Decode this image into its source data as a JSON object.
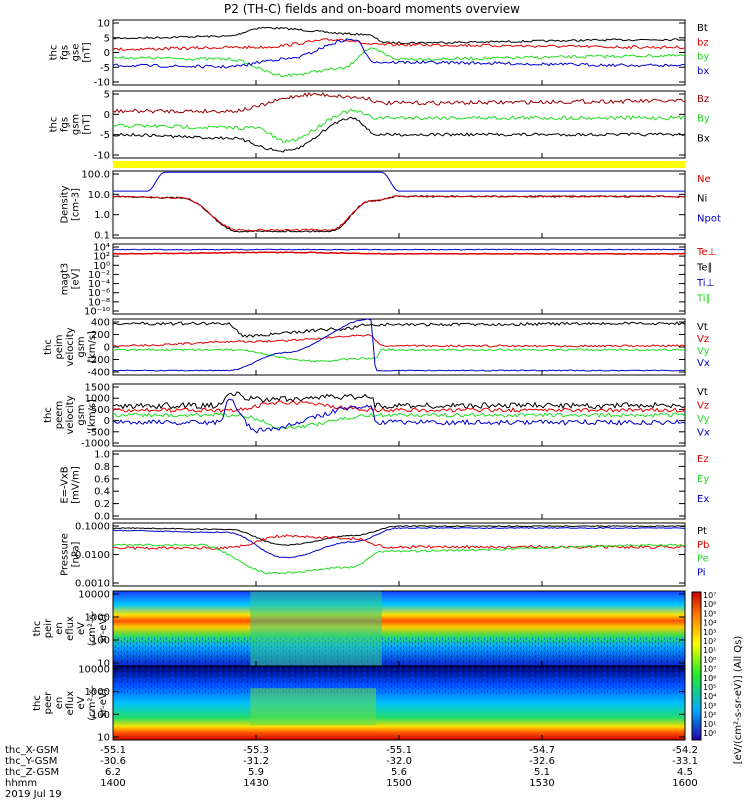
{
  "title": "P2 (TH-C) fields and on-board moments overview",
  "colors": {
    "black": "#000000",
    "red": "#e00000",
    "green": "#22dd22",
    "blue": "#0000cc",
    "darkred": "#990000",
    "yellow": "#ffff00"
  },
  "panels": [
    {
      "id": "fgs-gse",
      "ylabel": [
        "thc",
        "fgs",
        "gse",
        "[nT]"
      ],
      "ticks": [
        "10",
        "5",
        "0",
        "-5",
        "-10"
      ],
      "legend": [
        {
          "text": "Bt",
          "color": "black"
        },
        {
          "text": "bz",
          "color": "red"
        },
        {
          "text": "by",
          "color": "green"
        },
        {
          "text": "bx",
          "color": "blue"
        }
      ]
    },
    {
      "id": "fgs-gsm",
      "ylabel": [
        "thc",
        "fgs",
        "gsm",
        "[nT]"
      ],
      "ticks": [
        "5",
        "0",
        "-5",
        "-10"
      ],
      "legend": [
        {
          "text": "Bz",
          "color": "darkred"
        },
        {
          "text": "By",
          "color": "green"
        },
        {
          "text": "Bx",
          "color": "black"
        }
      ]
    },
    {
      "id": "density",
      "ylabel": [
        "Density",
        "[cm-3]"
      ],
      "ticks": [
        "100.0",
        "10.0",
        "1.0",
        "0.1"
      ],
      "legend": [
        {
          "text": "Ne",
          "color": "red"
        },
        {
          "text": "Ni",
          "color": "black"
        },
        {
          "text": "Npot",
          "color": "blue"
        }
      ]
    },
    {
      "id": "temp",
      "ylabel": [
        "magt3",
        "[eV]"
      ],
      "ticks": [
        "10⁴",
        "10²",
        "10⁰",
        "10⁻²",
        "10⁻⁴",
        "10⁻⁶",
        "10⁻⁸",
        "10⁻¹⁰"
      ],
      "legend": [
        {
          "text": "Te⊥",
          "color": "red"
        },
        {
          "text": "Te∥",
          "color": "black"
        },
        {
          "text": "Ti⊥",
          "color": "blue"
        },
        {
          "text": "Ti∥",
          "color": "green"
        }
      ]
    },
    {
      "id": "peim-vel",
      "ylabel": [
        "thc",
        "peim",
        "velocity",
        "gsm",
        "[km/s]"
      ],
      "ticks": [
        "400",
        "200",
        "0",
        "-200",
        "-400"
      ],
      "legend": [
        {
          "text": "Vt",
          "color": "black"
        },
        {
          "text": "Vz",
          "color": "red"
        },
        {
          "text": "Vy",
          "color": "green"
        },
        {
          "text": "Vx",
          "color": "blue"
        }
      ]
    },
    {
      "id": "peem-vel",
      "ylabel": [
        "thc",
        "peem",
        "velocity",
        "gsm",
        "[km/s]"
      ],
      "ticks": [
        "1500",
        "1000",
        "500",
        "0",
        "-500",
        "-1000"
      ],
      "legend": [
        {
          "text": "Vt",
          "color": "black"
        },
        {
          "text": "Vz",
          "color": "red"
        },
        {
          "text": "Vy",
          "color": "green"
        },
        {
          "text": "Vx",
          "color": "blue"
        }
      ]
    },
    {
      "id": "efield",
      "ylabel": [
        "E=-VxB",
        "[mV/m]"
      ],
      "ticks": [
        "1.0",
        "0.8",
        "0.6",
        "0.4",
        "0.2",
        "0.0"
      ],
      "legend": [
        {
          "text": "Ez",
          "color": "red"
        },
        {
          "text": "Ey",
          "color": "green"
        },
        {
          "text": "Ex",
          "color": "blue"
        }
      ]
    },
    {
      "id": "pressure",
      "ylabel": [
        "Pressure",
        "[nPa]"
      ],
      "ticks": [
        "0.1000",
        "0.0100",
        "0.0010"
      ],
      "legend": [
        {
          "text": "Pt",
          "color": "black"
        },
        {
          "text": "Pb",
          "color": "red"
        },
        {
          "text": "Pe",
          "color": "green"
        },
        {
          "text": "Pi",
          "color": "blue"
        }
      ]
    },
    {
      "id": "peir-spec",
      "ylabel": [
        "thc",
        "peir",
        "en",
        "eflux",
        "eV",
        "(cm²-s-",
        "sr-eV)"
      ],
      "ticks": [
        "10000",
        "1000",
        "100",
        "10"
      ],
      "legend": []
    },
    {
      "id": "peer-spec",
      "ylabel": [
        "thc",
        "peer",
        "en",
        "eflux",
        "eV",
        "(cm²-s-",
        "sr-eV)"
      ],
      "ticks": [
        "10000",
        "1000",
        "100",
        "10"
      ],
      "legend": []
    }
  ],
  "colorbar": {
    "label": "[eV/(cm²-s-sr-eV)] (All Qs)",
    "ticks": [
      "10⁷",
      "10⁶",
      "10⁵",
      "10⁴",
      "10³",
      "10²",
      "10¹",
      "10⁰",
      "10⁷",
      "10⁶",
      "10⁵",
      "10⁴",
      "10³",
      "10²",
      "10¹",
      "10⁰"
    ]
  },
  "xaxis": {
    "rows": [
      {
        "label": "thc_X-GSM",
        "values": [
          "-55.1",
          "-55.3",
          "-55.1",
          "-54.7",
          "-54.2"
        ]
      },
      {
        "label": "thc_Y-GSM",
        "values": [
          "-30.6",
          "-31.2",
          "-32.0",
          "-32.6",
          "-33.1"
        ]
      },
      {
        "label": "thc_Z-GSM",
        "values": [
          "6.2",
          "5.9",
          "5.6",
          "5.1",
          "4.5"
        ]
      },
      {
        "label": "hhmm",
        "values": [
          "1400",
          "1430",
          "1500",
          "1530",
          "1600"
        ]
      }
    ],
    "date": "2019 Jul 19"
  },
  "chart_data": {
    "type": "line",
    "title": "P2 (TH-C) fields and on-board moments overview",
    "x": [
      "1400",
      "1430",
      "1500",
      "1530",
      "1600"
    ],
    "panels": [
      {
        "name": "thc fgs gse [nT]",
        "ylim": [
          -10,
          10
        ],
        "series": [
          {
            "name": "Bt",
            "values": [
              4.5,
              7.0,
              4.0,
              4.0,
              4.0
            ]
          },
          {
            "name": "bz",
            "values": [
              1.0,
              1.0,
              1.0,
              1.0,
              1.0
            ]
          },
          {
            "name": "by",
            "values": [
              -1.0,
              -5.5,
              -1.0,
              -1.0,
              -1.0
            ]
          },
          {
            "name": "bx",
            "values": [
              -3.0,
              -5.0,
              -2.5,
              -3.0,
              -3.0
            ]
          }
        ]
      },
      {
        "name": "thc fgs gsm [nT]",
        "ylim": [
          -12,
          5
        ],
        "series": [
          {
            "name": "Bz",
            "values": [
              1.0,
              0.0,
              3.0,
              3.0,
              3.0
            ]
          },
          {
            "name": "By",
            "values": [
              -2.0,
              -7.0,
              -2.0,
              -2.0,
              -2.0
            ]
          },
          {
            "name": "Bx",
            "values": [
              -5.0,
              -8.0,
              -6.0,
              -5.5,
              -5.0
            ]
          }
        ]
      },
      {
        "name": "Density [cm-3]",
        "log": true,
        "ylim": [
          0.03,
          300
        ],
        "series": [
          {
            "name": "Ne",
            "values": [
              7,
              0.05,
              7,
              7,
              7
            ]
          },
          {
            "name": "Ni",
            "values": [
              7,
              0.05,
              7,
              7,
              7
            ]
          },
          {
            "name": "Npot",
            "values": [
              10,
              200,
              10,
              10,
              10
            ]
          }
        ]
      },
      {
        "name": "magt3 [eV]",
        "log": true,
        "series": [
          {
            "name": "Te⊥",
            "values": [
              40,
              40,
              40,
              40,
              40
            ]
          },
          {
            "name": "Ti⊥",
            "values": [
              150,
              150,
              150,
              150,
              150
            ]
          }
        ]
      },
      {
        "name": "thc peim velocity gsm [km/s]",
        "ylim": [
          -400,
          400
        ],
        "series": [
          {
            "name": "Vt",
            "values": [
              320,
              200,
              320,
              320,
              320
            ]
          },
          {
            "name": "Vz",
            "values": [
              0,
              50,
              0,
              0,
              0
            ]
          },
          {
            "name": "Vy",
            "values": [
              -40,
              -150,
              -40,
              -40,
              -40
            ]
          },
          {
            "name": "Vx",
            "values": [
              -330,
              -100,
              -330,
              -330,
              -330
            ]
          }
        ]
      },
      {
        "name": "thc peem velocity gsm [km/s]",
        "ylim": [
          -1000,
          1500
        ],
        "series": [
          {
            "name": "Vt",
            "values": [
              300,
              700,
              300,
              300,
              300
            ]
          },
          {
            "name": "Vz",
            "values": [
              50,
              0,
              50,
              50,
              50
            ]
          },
          {
            "name": "Vy",
            "values": [
              -100,
              -200,
              -100,
              -100,
              -100
            ]
          },
          {
            "name": "Vx",
            "values": [
              -300,
              -300,
              -300,
              -300,
              -300
            ]
          }
        ]
      },
      {
        "name": "Pressure [nPa]",
        "log": true,
        "ylim": [
          0.0005,
          0.15
        ],
        "series": [
          {
            "name": "Pt",
            "values": [
              0.06,
              0.025,
              0.08,
              0.08,
              0.08
            ]
          },
          {
            "name": "Pb",
            "values": [
              0.006,
              0.04,
              0.006,
              0.006,
              0.006
            ]
          },
          {
            "name": "Pe",
            "values": [
              0.009,
              0.0009,
              0.009,
              0.009,
              0.009
            ]
          },
          {
            "name": "Pi",
            "values": [
              0.05,
              0.003,
              0.06,
              0.06,
              0.06
            ]
          }
        ]
      }
    ]
  }
}
